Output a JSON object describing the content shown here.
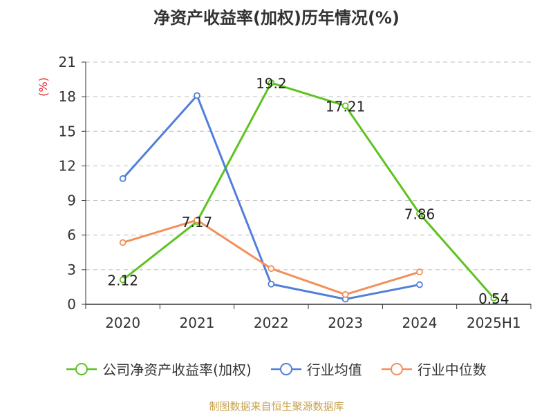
{
  "chart_data": {
    "type": "line",
    "title": "净资产收益率(加权)历年情况(%)",
    "ylabel": "(%)",
    "xlabel": "",
    "categories": [
      "2020",
      "2021",
      "2022",
      "2023",
      "2024",
      "2025H1"
    ],
    "ylim": [
      0,
      21
    ],
    "yticks": [
      0,
      3,
      6,
      9,
      12,
      15,
      18,
      21
    ],
    "grid": "horizontal-dashed",
    "legend_position": "bottom",
    "series": [
      {
        "name": "公司净资产收益率(加权)",
        "color": "#5cc31e",
        "values": [
          2.12,
          7.17,
          19.2,
          17.21,
          7.86,
          0.54
        ],
        "labels": [
          "2.12",
          "7.17",
          "19.2",
          "17.21",
          "7.86",
          "0.54"
        ]
      },
      {
        "name": "行业均值",
        "color": "#4f7fdb",
        "values": [
          10.9,
          18.1,
          1.75,
          0.45,
          1.7,
          null
        ]
      },
      {
        "name": "行业中位数",
        "color": "#f38f5a",
        "values": [
          5.35,
          7.3,
          3.1,
          0.85,
          2.8,
          null
        ]
      }
    ]
  },
  "footer": {
    "source": "制图数据来自恒生聚源数据库"
  }
}
